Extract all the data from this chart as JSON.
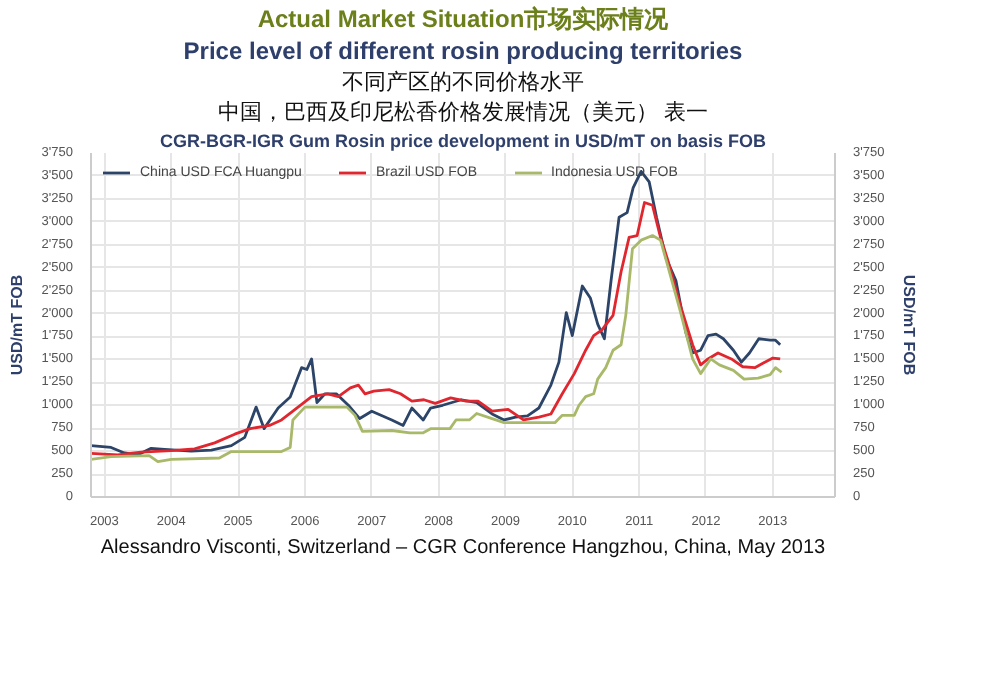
{
  "chart_data": {
    "type": "line",
    "title": "CGR-BGR-IGR Gum Rosin price development in USD/mT on basis FOB",
    "annotations": [
      "Actual Market Situation市场实际情况",
      "Price level of different rosin producing territories",
      "不同产区的不同价格水平",
      "中国，巴西及印尼松香价格发展情况（美元） 表一",
      "Alessandro Visconti, Switzerland – CGR Conference Hangzhou, China, May 2013"
    ],
    "ylabel": "USD/mT FOB",
    "y2label": "USD/mT FOB",
    "xlim": [
      2002.8,
      2013.93
    ],
    "xticks": [
      2003,
      2004,
      2005,
      2006,
      2007,
      2008,
      2009,
      2010,
      2011,
      2012,
      2013
    ],
    "ylim": [
      0,
      3750
    ],
    "yticks": [
      0,
      250,
      500,
      750,
      {
        "value": 1000,
        "label": "1'000"
      },
      {
        "value": 1250,
        "label": "1'250"
      },
      {
        "value": 1500,
        "label": "1'500"
      },
      {
        "value": 1750,
        "label": "1'750"
      },
      {
        "value": 2000,
        "label": "2'000"
      },
      {
        "value": 2250,
        "label": "2'250"
      },
      {
        "value": 2500,
        "label": "2'500"
      },
      {
        "value": 2750,
        "label": "2'750"
      },
      {
        "value": 3000,
        "label": "3'000"
      },
      {
        "value": 3250,
        "label": "3'250"
      },
      {
        "value": 3500,
        "label": "3'500"
      },
      {
        "value": 3750,
        "label": "3'750"
      }
    ],
    "y2lim": [
      0,
      3750
    ],
    "y2ticks": [
      0,
      250,
      500,
      750,
      {
        "value": 1000,
        "label": "1'000"
      },
      {
        "value": 1250,
        "label": "1'250"
      },
      {
        "value": 1500,
        "label": "1'500"
      },
      {
        "value": 1750,
        "label": "1'750"
      },
      {
        "value": 2000,
        "label": "2'000"
      },
      {
        "value": 2250,
        "label": "2'250"
      },
      {
        "value": 2500,
        "label": "2'500"
      },
      {
        "value": 2750,
        "label": "2'750"
      },
      {
        "value": 3000,
        "label": "3'000"
      },
      {
        "value": 3250,
        "label": "3'250"
      },
      {
        "value": 3500,
        "label": "3'500"
      },
      {
        "value": 3750,
        "label": "3'750"
      }
    ],
    "grid": true,
    "legend": "top left",
    "line_style": "solid",
    "series": [
      {
        "name": "China USD FCA Huangpu",
        "color": "#2b4468",
        "x": [
          2002.8,
          2003.1,
          2003.3,
          2003.5,
          2003.7,
          2003.9,
          2004.3,
          2004.6,
          2004.9,
          2005.1,
          2005.27,
          2005.39,
          2005.6,
          2005.78,
          2005.95,
          2006.03,
          2006.1,
          2006.18,
          2006.3,
          2006.47,
          2006.65,
          2006.82,
          2007.0,
          2007.3,
          2007.47,
          2007.6,
          2007.77,
          2007.88,
          2008.06,
          2008.34,
          2008.57,
          2008.8,
          2008.98,
          2009.15,
          2009.33,
          2009.5,
          2009.68,
          2009.8,
          2009.91,
          2010.0,
          2010.15,
          2010.27,
          2010.38,
          2010.48,
          2010.58,
          2010.7,
          2010.82,
          2010.91,
          2011.03,
          2011.15,
          2011.26,
          2011.4,
          2011.55,
          2011.7,
          2011.8,
          2011.92,
          2012.03,
          2012.15,
          2012.26,
          2012.41,
          2012.53,
          2012.65,
          2012.79,
          2012.96,
          2013.04,
          2013.11
        ],
        "values": [
          560,
          540,
          480,
          460,
          530,
          520,
          500,
          510,
          560,
          650,
          980,
          745,
          970,
          1090,
          1410,
          1390,
          1505,
          1030,
          1125,
          1125,
          1000,
          855,
          935,
          840,
          780,
          970,
          840,
          970,
          1000,
          1060,
          1030,
          905,
          840,
          870,
          885,
          970,
          1220,
          1470,
          2010,
          1760,
          2300,
          2170,
          1885,
          1725,
          2360,
          3050,
          3100,
          3370,
          3550,
          3435,
          3050,
          2610,
          2360,
          1790,
          1570,
          1600,
          1760,
          1775,
          1725,
          1600,
          1470,
          1570,
          1725,
          1710,
          1710,
          1660
        ]
      },
      {
        "name": "Brazil USD FOB",
        "color": "#e0262e",
        "x": [
          2002.8,
          2003.2,
          2003.55,
          2004.0,
          2004.35,
          2004.65,
          2004.95,
          2005.18,
          2005.47,
          2005.65,
          2005.82,
          2006.1,
          2006.34,
          2006.5,
          2006.68,
          2006.8,
          2006.9,
          2007.03,
          2007.26,
          2007.43,
          2007.6,
          2007.78,
          2007.95,
          2008.18,
          2008.41,
          2008.59,
          2008.8,
          2009.04,
          2009.27,
          2009.5,
          2009.68,
          2009.85,
          2010.03,
          2010.2,
          2010.32,
          2010.44,
          2010.61,
          2010.73,
          2010.85,
          2010.97,
          2011.08,
          2011.2,
          2011.32,
          2011.43,
          2011.61,
          2011.8,
          2011.92,
          2012.03,
          2012.18,
          2012.38,
          2012.55,
          2012.73,
          2012.88,
          2013.0,
          2013.11
        ],
        "values": [
          475,
          460,
          490,
          505,
          525,
          590,
          685,
          745,
          780,
          840,
          935,
          1095,
          1125,
          1095,
          1190,
          1220,
          1125,
          1155,
          1170,
          1125,
          1045,
          1060,
          1020,
          1080,
          1045,
          1045,
          935,
          955,
          840,
          870,
          905,
          1125,
          1345,
          1600,
          1760,
          1820,
          1980,
          2455,
          2830,
          2850,
          3210,
          3180,
          2830,
          2580,
          2105,
          1660,
          1440,
          1505,
          1570,
          1505,
          1420,
          1410,
          1470,
          1515,
          1505
        ]
      },
      {
        "name": "Indonesia USD FOB",
        "color": "#a9b96a",
        "x": [
          2002.8,
          2003.1,
          2003.67,
          2003.8,
          2004.0,
          2004.72,
          2004.9,
          2005.65,
          2005.78,
          2005.82,
          2006.0,
          2006.63,
          2006.75,
          2006.86,
          2007.3,
          2007.57,
          2007.77,
          2007.88,
          2008.17,
          2008.26,
          2008.46,
          2008.57,
          2008.8,
          2008.98,
          2009.74,
          2009.85,
          2010.03,
          2010.1,
          2010.2,
          2010.32,
          2010.38,
          2010.5,
          2010.61,
          2010.73,
          2010.8,
          2010.9,
          2011.03,
          2011.2,
          2011.32,
          2011.43,
          2011.61,
          2011.8,
          2011.92,
          2012.07,
          2012.2,
          2012.41,
          2012.57,
          2012.78,
          2012.96,
          2013.04,
          2013.13
        ],
        "values": [
          410,
          440,
          450,
          385,
          410,
          425,
          495,
          495,
          540,
          840,
          980,
          980,
          890,
          715,
          725,
          700,
          700,
          745,
          745,
          840,
          840,
          910,
          855,
          810,
          810,
          890,
          890,
          1000,
          1095,
          1125,
          1285,
          1410,
          1600,
          1660,
          1980,
          2705,
          2800,
          2850,
          2800,
          2515,
          2040,
          1505,
          1345,
          1505,
          1440,
          1380,
          1285,
          1295,
          1335,
          1410,
          1360
        ]
      }
    ]
  }
}
